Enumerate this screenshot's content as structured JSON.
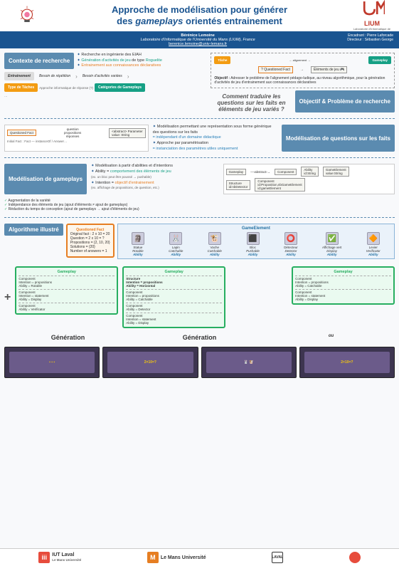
{
  "header": {
    "title_line1": "Approche de modélisation pour générer",
    "title_line2": "des",
    "title_em": "gameplays",
    "title_line2b": "orientés entrainement",
    "lium": "LIUM",
    "lium_sub": "Laboratoire d'Informatique de l'Université du Mans"
  },
  "author": {
    "name": "Bérénice Lemoine",
    "aff": "Laboratoire d'Informatique de l'Université du Mans (LIUM), France",
    "email": "berenice.lemoine@univ-lemans.fr",
    "encadrant_label": "Encadrant :",
    "encadrant": "Pierre Laforcade",
    "directeur_label": "Directeur :",
    "directeur": "Sébastien George"
  },
  "s1": {
    "label": "Contexte de recherche",
    "b1": "Recherche en ingénierie des EIAH",
    "b2a": "Génération d'activités de jeu",
    "b2b": " de type ",
    "b2c": "Roguelite",
    "b3a": "Entrainement aux connaissances déclaratives",
    "flow": {
      "f1": "Entrainement",
      "a1": "Besoin de répétition",
      "a2": "Besoin d'activités variées",
      "f2": "Type de Tâches",
      "f2s": "Approche informatique de réponse (?)",
      "f3": "Catégories de Gameplays"
    }
  },
  "s2": {
    "label": "Objectif & Problème de recherche",
    "tache": "Tâche",
    "gp": "Gameplay",
    "obj_label": "Objectif :",
    "obj": "Adresser le problème de l'alignement pédago-ludique, au niveau algorithmique, pour la génération d'activités de jeu d'entrainement aux connaissances déclaratives",
    "q": "Comment traduire les questions sur les faits en éléments de jeu variés ?"
  },
  "s3": {
    "label": "Modélisation de questions sur les faits",
    "b1": "Modélisation permettant une représentation sous forme générique des questions sur les faits",
    "b1s": "= indépendant d'un domaine didactique",
    "b2": "Approche par paramétrisation",
    "b2s": "= instanciation des paramètres utiles uniquement",
    "qf": "Questioned Fact",
    "qf_items": [
      "question",
      "propositions",
      "réponses"
    ],
    "param": "<abstract> Parameter",
    "param_items": [
      "value: String"
    ]
  },
  "s4": {
    "label": "Modélisation de gameplays",
    "b1": "Modélisation à partir d'abilities et d'intentions",
    "b2": "Ability = ",
    "b2b": "comportement des éléments de jeu",
    "b2c": "(ex. un bloc peut être poussé → pushable)",
    "b3": "Intention = ",
    "b3b": "objectif d'entrainement",
    "b3c": "(ex. affichage de propositions, de question, etc.)",
    "c1": "Augmentation de la variété",
    "c2": "Indépendance des éléments de jeu (ajout d'éléments ≠ ajout de gameplays)",
    "c3": "Réduction du temps de conception (ajout de gameplays → ajout d'éléments de jeu)"
  },
  "s5": {
    "label": "Algorithme illustré",
    "qfact": {
      "title": "Questioned Fact",
      "l1": "Original fact : 2 x 10 = 20",
      "l2": "Question = 2 x 10 = ?",
      "l3": "Propositions = {2, 10, 20}",
      "l4": "Solutions = {20}",
      "l5": "Number of answers = 1"
    },
    "ge": {
      "title": "GameElement",
      "items": [
        {
          "name": "Statue",
          "ab": "Rotable",
          "glyph": "🗿"
        },
        {
          "name": "Lapin",
          "ab": "Catchable",
          "glyph": "🐰"
        },
        {
          "name": "Vache",
          "ab": "Catchable",
          "glyph": "🐮"
        },
        {
          "name": "Bloc",
          "ab": "Pushable",
          "glyph": "⬛"
        },
        {
          "name": "Détecteur",
          "ab": "Detector",
          "glyph": "⭕"
        },
        {
          "name": "Affichage vert",
          "ab": "Display",
          "glyph": "✅"
        },
        {
          "name": "Levier",
          "ab": "Verificator",
          "glyph": "🔶"
        }
      ],
      "ab_label": "Ability"
    },
    "plus": "+",
    "gp": [
      {
        "title": "Gameplay",
        "comps": [
          "Component\nIntention = propositions\nAbility = Rotable",
          "Component\nIntention = statement\nAbility = Display",
          "Component\nAbility = Verificator"
        ]
      },
      {
        "title": "Gameplay",
        "struct": "Structure\nIntention = propositions\nAbility = Horizontal",
        "comps": [
          "Component\nIntention = propositions\nAbility = Catchable",
          "Component\nAbility = Detector",
          "Component\nIntention = statement\nAbility = Display"
        ]
      },
      {
        "title": "Gameplay",
        "comps": [
          "Component\nIntention = propositions\nAbility = Catchable",
          "Component\nIntention = statement\nAbility = Display"
        ]
      }
    ],
    "gen": "Génération",
    "ou": "ou"
  },
  "footer": {
    "f1": "IUT Laval",
    "f1s": "Le Mans Université",
    "f2": "Le Mans Université",
    "f3": "LAVAL agglo",
    "colors": {
      "iut": "#e74c3c",
      "lmu": "#e67e22",
      "laval": "#fff",
      "circ": "#e74c3c"
    }
  }
}
